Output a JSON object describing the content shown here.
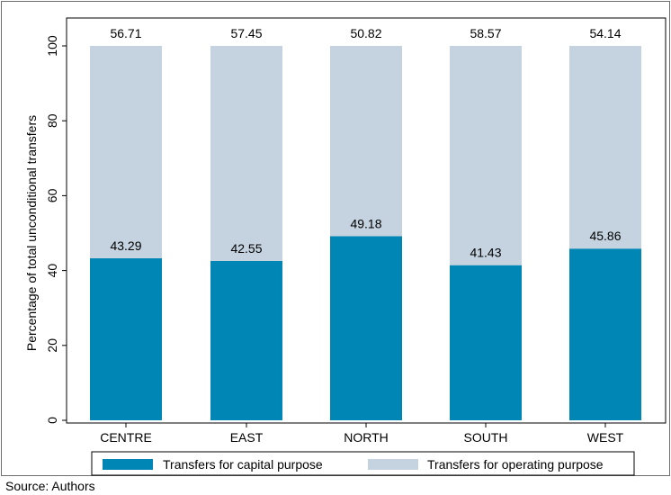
{
  "chart_data": {
    "type": "bar",
    "stacked": true,
    "categories": [
      "CENTRE",
      "EAST",
      "NORTH",
      "SOUTH",
      "WEST"
    ],
    "series": [
      {
        "name": "Transfers for capital purpose",
        "values": [
          43.29,
          42.55,
          49.18,
          41.43,
          45.86
        ],
        "color": "#0086b5"
      },
      {
        "name": "Transfers for operating purpose",
        "values": [
          56.71,
          57.45,
          50.82,
          58.57,
          54.14
        ],
        "color": "#c4d3df"
      }
    ],
    "data_labels": {
      "capital": [
        "43.29",
        "42.55",
        "49.18",
        "41.43",
        "45.86"
      ],
      "operating": [
        "56.71",
        "57.45",
        "50.82",
        "58.57",
        "54.14"
      ]
    },
    "ylabel": "Percentage of total unconditional  transfers",
    "xlabel": "",
    "ylim": [
      0,
      100
    ],
    "yticks": [
      "0",
      "20",
      "40",
      "60",
      "80",
      "100"
    ],
    "grid": false,
    "legend_position": "bottom",
    "source_note": "Source: Authors"
  }
}
